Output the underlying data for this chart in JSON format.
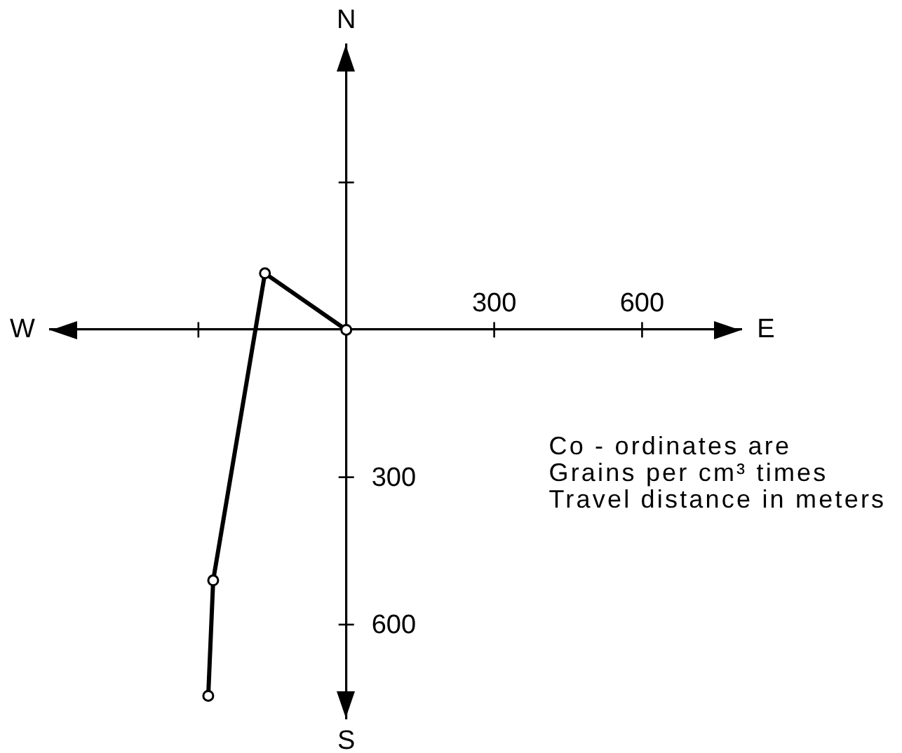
{
  "chart_data": {
    "type": "line",
    "x": [
      0,
      -165,
      -270,
      -280
    ],
    "values": [
      0,
      115,
      -510,
      -745
    ],
    "color": "#000000",
    "xlim": [
      -600,
      800
    ],
    "ylim": [
      -790,
      580
    ],
    "xticks": [
      {
        "value": -300,
        "label": null
      },
      300,
      600
    ],
    "yticks": [
      {
        "value": 300,
        "label": null
      },
      {
        "value": -300,
        "label": "300"
      },
      {
        "value": -600,
        "label": "600"
      }
    ],
    "marker": "circle",
    "line_style": "solid",
    "annotations": [
      "N",
      "E",
      "W",
      "S",
      "Co - ordinates are\nGrains per cm³ times\nTravel distance in meters"
    ]
  }
}
